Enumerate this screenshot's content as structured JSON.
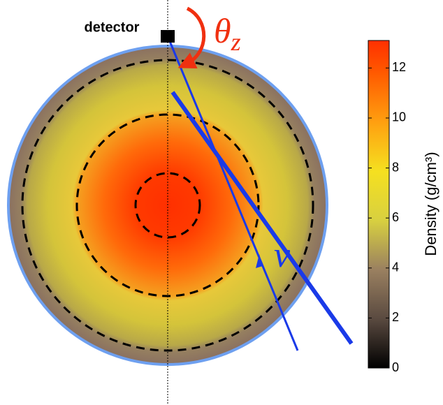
{
  "detector_label": "detector",
  "angle_label": {
    "symbol": "θ",
    "subscript": "z"
  },
  "particle_label": "ν",
  "colorbar": {
    "label": "Density (g/cm³)",
    "lim": [
      0,
      13.1
    ],
    "ticks": [
      0,
      2,
      4,
      6,
      8,
      10,
      12
    ]
  }
}
